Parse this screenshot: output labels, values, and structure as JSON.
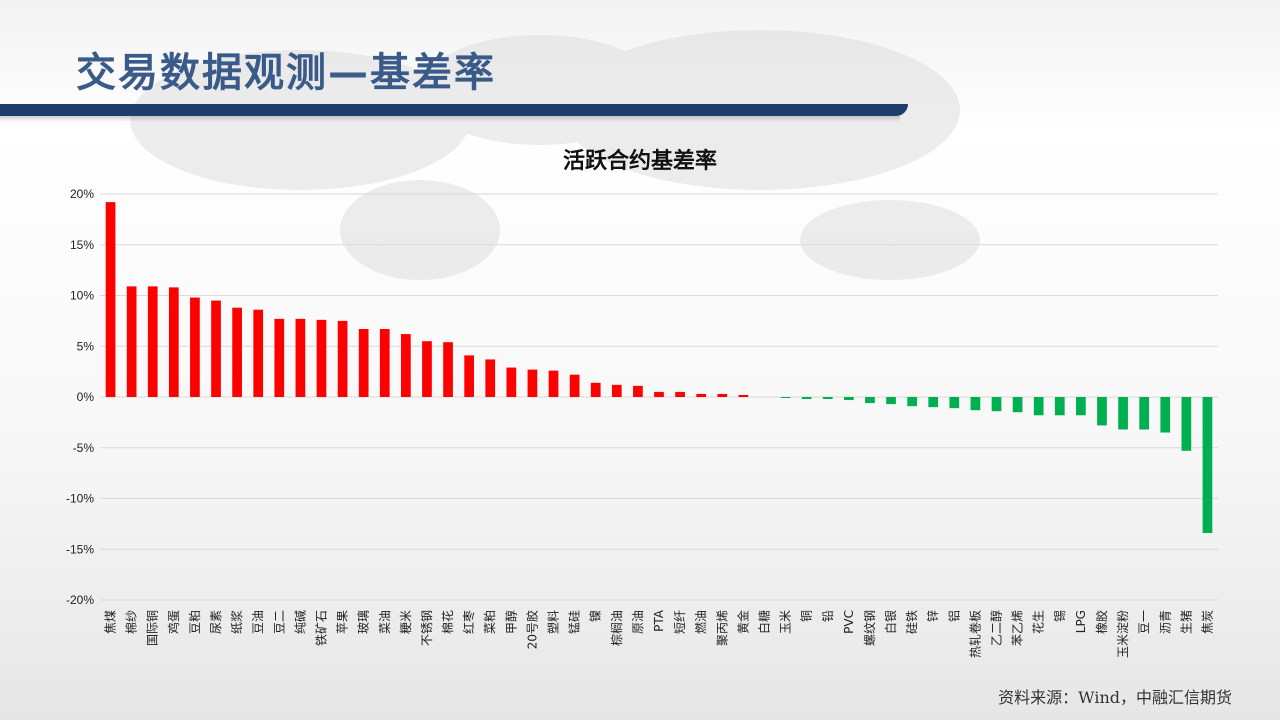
{
  "slide": {
    "title": "交易数据观测—基差率",
    "source": "资料来源：Wind，中融汇信期货"
  },
  "colors": {
    "positive": "#ff0000",
    "negative": "#00b050",
    "title": "#3a5b89",
    "title_bar": "#1f3d6b",
    "grid": "#d9d9d9"
  },
  "chart_data": {
    "type": "bar",
    "title": "活跃合约基差率",
    "ylim": [
      -20,
      20
    ],
    "yticks": [
      20,
      15,
      10,
      5,
      0,
      -5,
      -10,
      -15,
      -20
    ],
    "ytick_labels": [
      "20%",
      "15%",
      "10%",
      "5%",
      "0%",
      "-5%",
      "-10%",
      "-15%",
      "-20%"
    ],
    "grid": true,
    "categories": [
      "焦煤",
      "棉纱",
      "国际铜",
      "鸡蛋",
      "豆粕",
      "尿素",
      "纸浆",
      "豆油",
      "豆二",
      "纯碱",
      "铁矿石",
      "苹果",
      "玻璃",
      "菜油",
      "粳米",
      "不锈钢",
      "棉花",
      "红枣",
      "菜粕",
      "甲醇",
      "20号胶",
      "塑料",
      "锰硅",
      "镍",
      "棕榈油",
      "原油",
      "PTA",
      "短纤",
      "燃油",
      "聚丙烯",
      "黄金",
      "白糖",
      "玉米",
      "铜",
      "铅",
      "PVC",
      "螺纹钢",
      "白银",
      "硅铁",
      "锌",
      "铝",
      "热轧卷板",
      "乙二醇",
      "苯乙烯",
      "花生",
      "锡",
      "LPG",
      "橡胶",
      "玉米淀粉",
      "豆一",
      "沥青",
      "生猪",
      "焦炭"
    ],
    "values": [
      19.2,
      10.9,
      10.9,
      10.8,
      9.8,
      9.5,
      8.8,
      8.6,
      7.7,
      7.7,
      7.6,
      7.5,
      6.7,
      6.7,
      6.2,
      5.5,
      5.4,
      4.1,
      3.7,
      2.9,
      2.7,
      2.6,
      2.2,
      1.4,
      1.2,
      1.1,
      0.5,
      0.5,
      0.3,
      0.3,
      0.2,
      0,
      -0.1,
      -0.2,
      -0.2,
      -0.3,
      -0.6,
      -0.7,
      -0.9,
      -1.0,
      -1.1,
      -1.3,
      -1.4,
      -1.5,
      -1.8,
      -1.8,
      -1.8,
      -2.8,
      -3.2,
      -3.2,
      -3.5,
      -5.3,
      -13.4
    ]
  }
}
